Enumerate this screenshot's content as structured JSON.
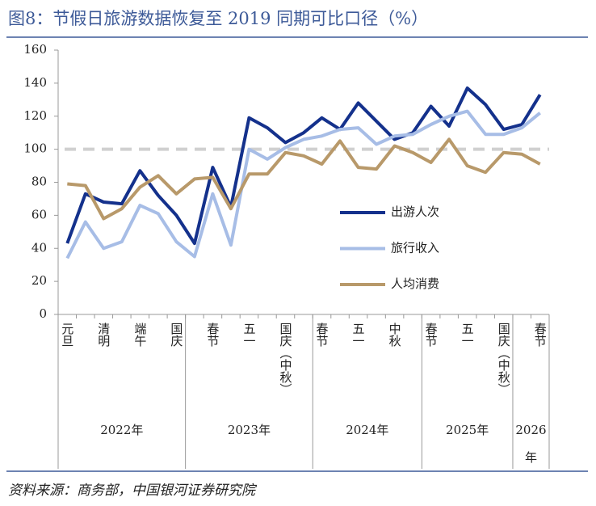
{
  "chart_data": {
    "type": "line",
    "title": "图8：节假日旅游数据恢复至 2019 同期可比口径（%）",
    "source": "资料来源：商务部，中国银河证券研究院",
    "groups": [
      {
        "name": "2022年",
        "categories": [
          "元旦",
          null,
          "清明",
          null,
          "端午",
          null,
          "国庆"
        ]
      },
      {
        "name": "2023年",
        "categories": [
          null,
          "春节",
          null,
          "五一",
          null,
          "国庆（中秋）",
          null
        ]
      },
      {
        "name": "2024年",
        "categories": [
          "春节",
          null,
          "五一",
          null,
          "中秋",
          null
        ]
      },
      {
        "name": "2025年",
        "categories": [
          "春节",
          null,
          "五一",
          null,
          "国庆（中秋）"
        ]
      },
      {
        "name": "2026年",
        "categories": [
          null,
          "春节"
        ]
      }
    ],
    "series": [
      {
        "name": "出游人次",
        "color": "#14318c",
        "values": [
          43,
          73,
          68,
          67,
          87,
          72,
          60,
          43,
          89,
          65,
          119,
          113,
          104,
          110,
          119,
          112,
          128,
          117,
          106,
          110,
          126,
          114,
          137,
          127,
          112,
          115,
          133
        ]
      },
      {
        "name": "旅行收入",
        "color": "#a7bde6",
        "values": [
          34,
          56,
          40,
          44,
          66,
          61,
          44,
          35,
          73,
          42,
          100,
          94,
          101,
          106,
          108,
          112,
          113,
          103,
          108,
          109,
          115,
          120,
          123,
          109,
          109,
          113,
          122
        ]
      },
      {
        "name": "人均消费",
        "color": "#b8996a",
        "values": [
          79,
          78,
          58,
          64,
          77,
          84,
          73,
          82,
          83,
          64,
          85,
          85,
          98,
          96,
          91,
          105,
          89,
          88,
          102,
          98,
          92,
          106,
          90,
          86,
          98,
          97,
          91
        ]
      }
    ],
    "reference_line": 100,
    "reference_color": "#d0d0d0",
    "ylim": [
      0,
      160
    ],
    "yticks": [
      0,
      20,
      40,
      60,
      80,
      100,
      120,
      140,
      160
    ],
    "grid": false
  }
}
